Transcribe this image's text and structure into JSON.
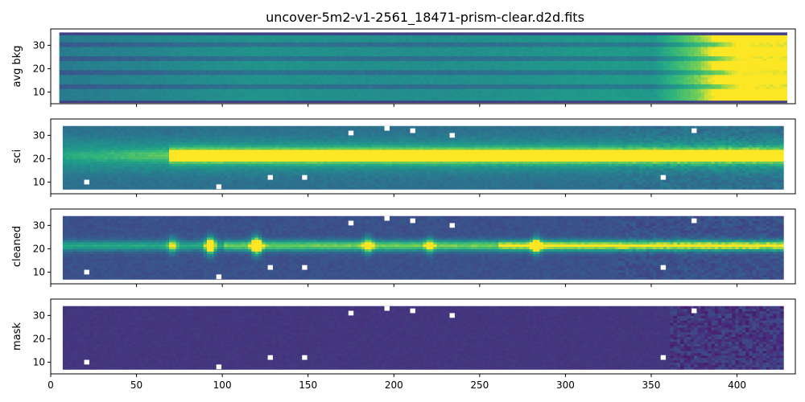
{
  "title": "uncover-5m2-v1-2561_18471-prism-clear.d2d.fits",
  "colors": {
    "background": "#ffffff",
    "masked_blue": "#3b4a8c",
    "deep_purple": "#443983",
    "teal": "#21918c",
    "green": "#5ec962",
    "yellow": "#fde725",
    "missing": "#ffffff"
  },
  "chart_data": [
    {
      "type": "heatmap",
      "name": "avg bkg",
      "ylabel": "avg bkg",
      "xlim": [
        0,
        434
      ],
      "ylim": [
        5,
        37
      ],
      "yticks": [
        10,
        20,
        30
      ],
      "xticks": [],
      "colormap": "viridis",
      "description_values": {
        "background_trace_rows_left": [
          12,
          18,
          24,
          30
        ],
        "bright_region_x_start": 390,
        "bright_region_x_end": 428
      }
    },
    {
      "type": "heatmap",
      "name": "sci",
      "ylabel": "sci",
      "xlim": [
        0,
        434
      ],
      "ylim": [
        5,
        37
      ],
      "yticks": [
        10,
        20,
        30
      ],
      "xticks": [],
      "colormap": "viridis",
      "description_values": {
        "trace_center_y": 21,
        "trace_x_start": 68,
        "trace_x_end": 428,
        "bad_pixels_xy": [
          [
            21,
            10
          ],
          [
            98,
            8
          ],
          [
            128,
            12
          ],
          [
            148,
            12
          ],
          [
            175,
            31
          ],
          [
            196,
            33
          ],
          [
            211,
            32
          ],
          [
            234,
            30
          ],
          [
            357,
            12
          ],
          [
            375,
            32
          ]
        ]
      }
    },
    {
      "type": "heatmap",
      "name": "cleaned",
      "ylabel": "cleaned",
      "xlim": [
        0,
        434
      ],
      "ylim": [
        5,
        37
      ],
      "yticks": [
        10,
        20,
        30
      ],
      "xticks": [],
      "colormap": "viridis",
      "description_values": {
        "trace_center_y": 21,
        "emission_lines_x": [
          70,
          92,
          119,
          184,
          220,
          282
        ],
        "bad_pixels_xy": [
          [
            21,
            10
          ],
          [
            98,
            8
          ],
          [
            128,
            12
          ],
          [
            148,
            12
          ],
          [
            175,
            31
          ],
          [
            196,
            33
          ],
          [
            211,
            32
          ],
          [
            234,
            30
          ],
          [
            357,
            12
          ],
          [
            375,
            32
          ]
        ]
      }
    },
    {
      "type": "heatmap",
      "name": "mask",
      "ylabel": "mask",
      "xlim": [
        0,
        434
      ],
      "ylim": [
        5,
        37
      ],
      "yticks": [
        10,
        20,
        30
      ],
      "xticks": [
        0,
        50,
        100,
        150,
        200,
        250,
        300,
        350,
        400
      ],
      "colormap": "viridis",
      "description_values": {
        "bad_pixels_xy": [
          [
            21,
            10
          ],
          [
            98,
            8
          ],
          [
            128,
            12
          ],
          [
            148,
            12
          ],
          [
            175,
            31
          ],
          [
            196,
            33
          ],
          [
            211,
            32
          ],
          [
            234,
            30
          ],
          [
            357,
            12
          ],
          [
            375,
            32
          ]
        ]
      }
    }
  ]
}
